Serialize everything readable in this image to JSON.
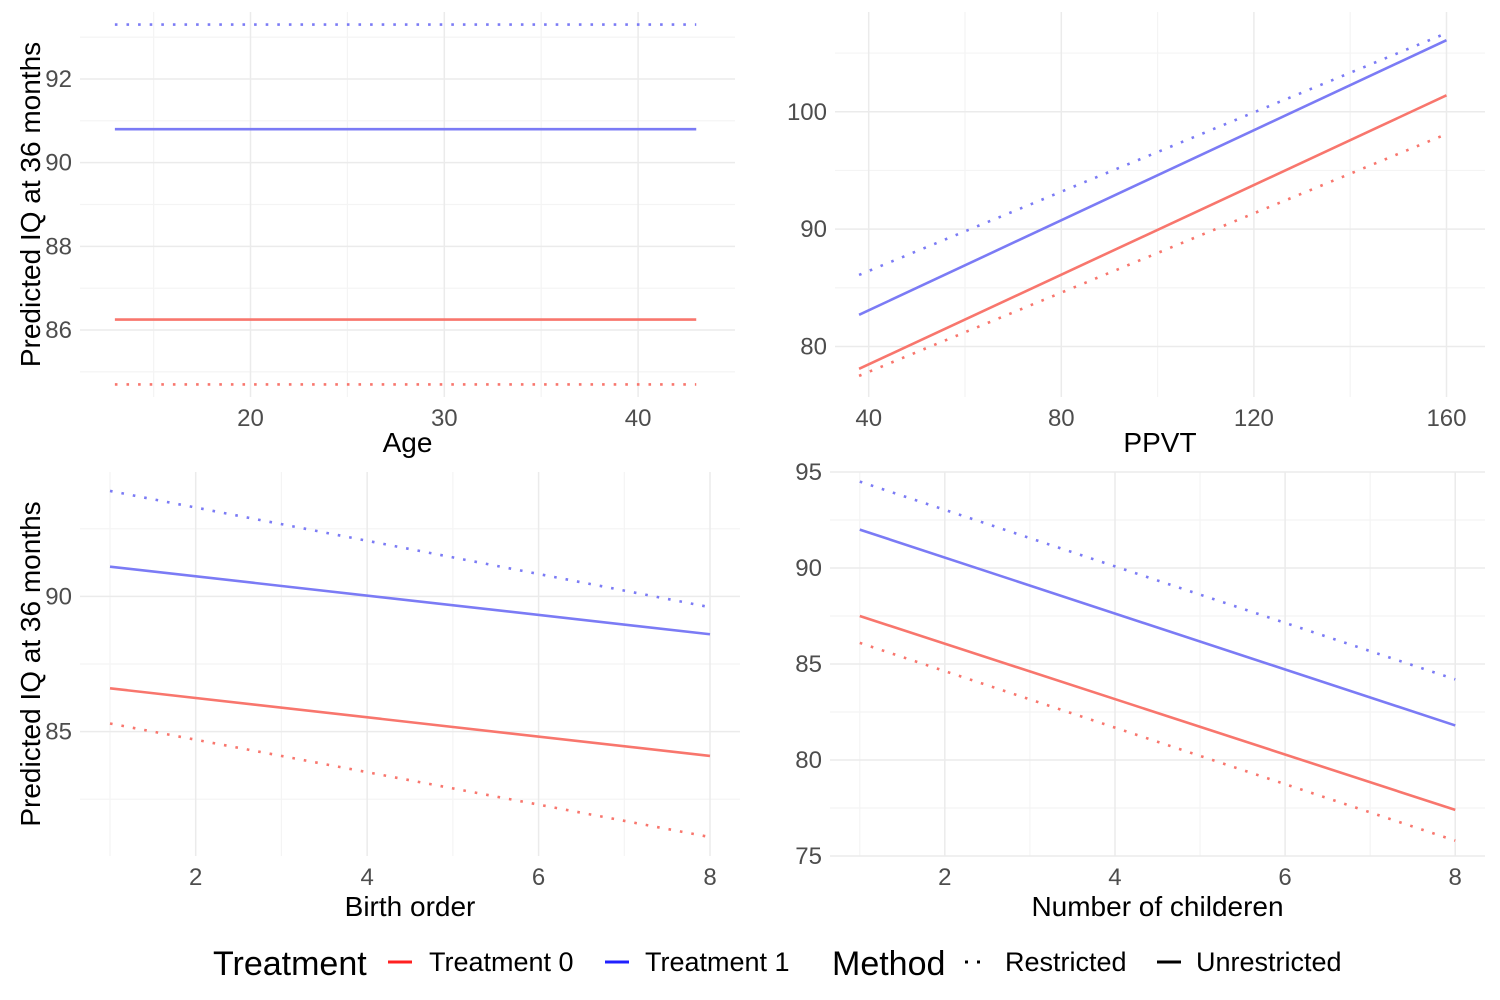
{
  "colors": {
    "treatment_0": "#f8766d",
    "treatment_1": "#7b7bf5",
    "grid_major": "#ebebeb",
    "grid_minor": "#f4f4f4",
    "legend_treatment_0": "#ff2020",
    "legend_treatment_1": "#2020ff"
  },
  "chart_data": [
    {
      "type": "line",
      "xlabel": "Age",
      "ylabel": "Predicted IQ at 36 months",
      "xlim": [
        11.2,
        45
      ],
      "ylim": [
        84.4,
        93.6
      ],
      "xticks": [
        20,
        30,
        40
      ],
      "xminor": [
        15,
        25,
        35
      ],
      "yticks": [
        86,
        88,
        90,
        92
      ],
      "yminor": [
        85,
        87,
        89,
        91,
        93
      ],
      "series": [
        {
          "treatment": "Treatment 1",
          "method": "Restricted",
          "x": [
            13,
            43
          ],
          "y": [
            93.3,
            93.3
          ]
        },
        {
          "treatment": "Treatment 1",
          "method": "Unrestricted",
          "x": [
            13,
            43
          ],
          "y": [
            90.8,
            90.8
          ]
        },
        {
          "treatment": "Treatment 0",
          "method": "Unrestricted",
          "x": [
            13,
            43
          ],
          "y": [
            86.25,
            86.25
          ]
        },
        {
          "treatment": "Treatment 0",
          "method": "Restricted",
          "x": [
            13,
            43
          ],
          "y": [
            84.7,
            84.7
          ]
        }
      ]
    },
    {
      "type": "line",
      "xlabel": "PPVT",
      "ylabel": "",
      "xlim": [
        33,
        168
      ],
      "ylim": [
        75.7,
        108.5
      ],
      "xticks": [
        40,
        80,
        120,
        160
      ],
      "xminor": [
        60,
        100,
        140
      ],
      "yticks": [
        80,
        90,
        100
      ],
      "yminor": [
        85,
        95,
        105
      ],
      "series": [
        {
          "treatment": "Treatment 1",
          "method": "Restricted",
          "x": [
            38,
            160
          ],
          "y": [
            86.1,
            106.7
          ]
        },
        {
          "treatment": "Treatment 1",
          "method": "Unrestricted",
          "x": [
            38,
            160
          ],
          "y": [
            82.7,
            106.1
          ]
        },
        {
          "treatment": "Treatment 0",
          "method": "Unrestricted",
          "x": [
            38,
            160
          ],
          "y": [
            78.1,
            101.4
          ]
        },
        {
          "treatment": "Treatment 0",
          "method": "Restricted",
          "x": [
            38,
            160
          ],
          "y": [
            77.5,
            98.1
          ]
        }
      ]
    },
    {
      "type": "line",
      "xlabel": "Birth order",
      "ylabel": "Predicted IQ at 36 months",
      "xlim": [
        0.65,
        8.35
      ],
      "ylim": [
        80.4,
        94.6
      ],
      "xticks": [
        2,
        4,
        6,
        8
      ],
      "xminor": [
        1,
        3,
        5,
        7
      ],
      "yticks": [
        85,
        90
      ],
      "yminor": [
        82.5,
        87.5,
        92.5
      ],
      "series": [
        {
          "treatment": "Treatment 1",
          "method": "Restricted",
          "x": [
            1,
            8
          ],
          "y": [
            93.9,
            89.6
          ]
        },
        {
          "treatment": "Treatment 1",
          "method": "Unrestricted",
          "x": [
            1,
            8
          ],
          "y": [
            91.1,
            88.6
          ]
        },
        {
          "treatment": "Treatment 0",
          "method": "Unrestricted",
          "x": [
            1,
            8
          ],
          "y": [
            86.6,
            84.1
          ]
        },
        {
          "treatment": "Treatment 0",
          "method": "Restricted",
          "x": [
            1,
            8
          ],
          "y": [
            85.3,
            81.1
          ]
        }
      ]
    },
    {
      "type": "line",
      "xlabel": "Number of childeren",
      "ylabel": "",
      "xlim": [
        0.65,
        8.35
      ],
      "ylim": [
        75,
        95
      ],
      "xticks": [
        2,
        4,
        6,
        8
      ],
      "xminor": [
        1,
        3,
        5,
        7
      ],
      "yticks": [
        75,
        80,
        85,
        90,
        95
      ],
      "yminor": [
        77.5,
        82.5,
        87.5,
        92.5
      ],
      "series": [
        {
          "treatment": "Treatment 1",
          "method": "Restricted",
          "x": [
            1,
            8
          ],
          "y": [
            94.5,
            84.2
          ]
        },
        {
          "treatment": "Treatment 1",
          "method": "Unrestricted",
          "x": [
            1,
            8
          ],
          "y": [
            92.0,
            81.8
          ]
        },
        {
          "treatment": "Treatment 0",
          "method": "Unrestricted",
          "x": [
            1,
            8
          ],
          "y": [
            87.5,
            77.4
          ]
        },
        {
          "treatment": "Treatment 0",
          "method": "Restricted",
          "x": [
            1,
            8
          ],
          "y": [
            86.1,
            75.8
          ]
        }
      ]
    }
  ],
  "legend": {
    "placement": "bottom",
    "treatment": {
      "title": "Treatment",
      "items": [
        "Treatment 0",
        "Treatment 1"
      ]
    },
    "method": {
      "title": "Method",
      "items": [
        "Restricted",
        "Unrestricted"
      ]
    }
  }
}
